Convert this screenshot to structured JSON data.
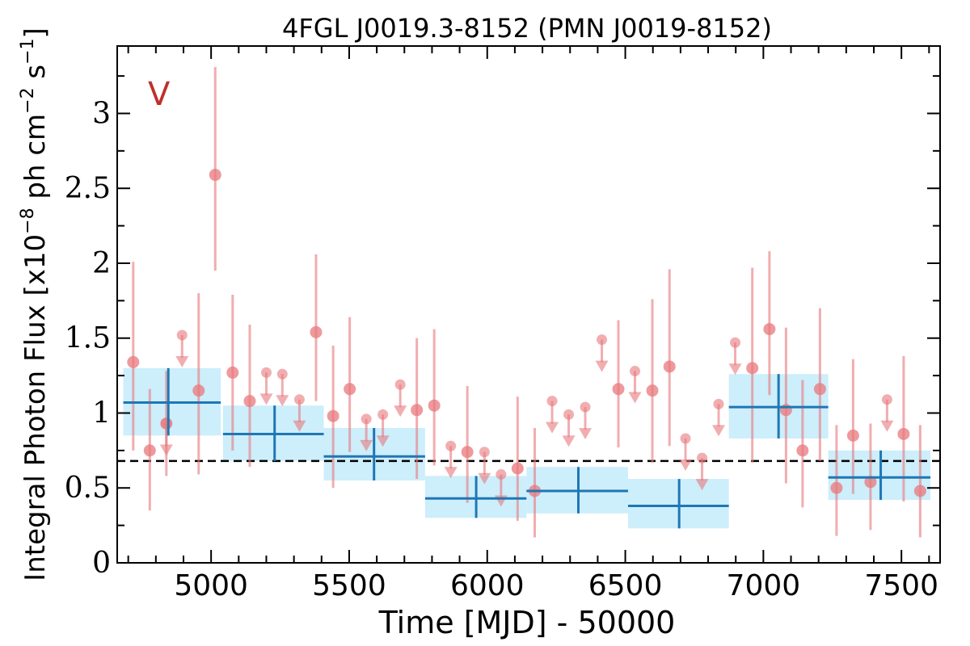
{
  "chart_data": {
    "type": "scatter",
    "title": "4FGL J0019.3-8152 (PMN J0019-8152)",
    "xlabel": "Time [MJD] - 50000",
    "ylabel_parts": {
      "pre": "Integral Photon Flux [x10",
      "exp1": "−8",
      "mid": " ph cm",
      "exp2": "−2",
      "mid2": " s",
      "exp3": "−1",
      "post": "]"
    },
    "annotation": "V",
    "xlim": [
      4660,
      7640
    ],
    "ylim": [
      0,
      3.45
    ],
    "xticks": [
      5000,
      5500,
      6000,
      6500,
      7000,
      7500
    ],
    "xtick_labels": [
      "5000",
      "5500",
      "6000",
      "6500",
      "7000",
      "7500"
    ],
    "yticks": [
      0,
      0.5,
      1,
      1.5,
      2,
      2.5,
      3
    ],
    "ytick_labels": [
      "0",
      "0.5",
      "1",
      "1.5",
      "2",
      "2.5",
      "3"
    ],
    "mean_flux": 0.68,
    "colors": {
      "points": "#e8787c",
      "bins": "#1f77b4",
      "bin_band": "#cdeefb",
      "annotation": "#c0302b",
      "mean_line": "#000000"
    },
    "detections": [
      {
        "x": 4718,
        "y": 1.34,
        "lo": 0.75,
        "hi": 2.01
      },
      {
        "x": 4778,
        "y": 0.75,
        "lo": 0.35,
        "hi": 1.16
      },
      {
        "x": 4838,
        "y": 0.93,
        "lo": 0.58,
        "hi": 1.28
      },
      {
        "x": 4955,
        "y": 1.15,
        "lo": 0.59,
        "hi": 1.8
      },
      {
        "x": 5015,
        "y": 2.59,
        "lo": 1.95,
        "hi": 3.31
      },
      {
        "x": 5078,
        "y": 1.27,
        "lo": 0.75,
        "hi": 1.79
      },
      {
        "x": 5140,
        "y": 1.08,
        "lo": 0.64,
        "hi": 1.59
      },
      {
        "x": 5380,
        "y": 1.54,
        "lo": 1.08,
        "hi": 2.06
      },
      {
        "x": 5442,
        "y": 0.98,
        "lo": 0.5,
        "hi": 1.45
      },
      {
        "x": 5502,
        "y": 1.16,
        "lo": 0.74,
        "hi": 1.64
      },
      {
        "x": 5745,
        "y": 1.02,
        "lo": 0.56,
        "hi": 1.5
      },
      {
        "x": 5808,
        "y": 1.05,
        "lo": 0.65,
        "hi": 1.56
      },
      {
        "x": 5928,
        "y": 0.74,
        "lo": 0.4,
        "hi": 1.18
      },
      {
        "x": 6110,
        "y": 0.63,
        "lo": 0.28,
        "hi": 1.11
      },
      {
        "x": 6172,
        "y": 0.48,
        "lo": 0.17,
        "hi": 0.9
      },
      {
        "x": 6475,
        "y": 1.16,
        "lo": 0.77,
        "hi": 1.62
      },
      {
        "x": 6598,
        "y": 1.15,
        "lo": 0.67,
        "hi": 1.76
      },
      {
        "x": 6660,
        "y": 1.31,
        "lo": 0.78,
        "hi": 1.96
      },
      {
        "x": 6960,
        "y": 1.3,
        "lo": 0.67,
        "hi": 1.97
      },
      {
        "x": 7022,
        "y": 1.56,
        "lo": 1.12,
        "hi": 2.08
      },
      {
        "x": 7082,
        "y": 1.02,
        "lo": 0.53,
        "hi": 1.57
      },
      {
        "x": 7142,
        "y": 0.75,
        "lo": 0.37,
        "hi": 1.22
      },
      {
        "x": 7205,
        "y": 1.16,
        "lo": 0.68,
        "hi": 1.7
      },
      {
        "x": 7265,
        "y": 0.5,
        "lo": 0.18,
        "hi": 0.92
      },
      {
        "x": 7325,
        "y": 0.85,
        "lo": 0.46,
        "hi": 1.36
      },
      {
        "x": 7388,
        "y": 0.54,
        "lo": 0.22,
        "hi": 0.93
      },
      {
        "x": 7508,
        "y": 0.86,
        "lo": 0.41,
        "hi": 1.38
      },
      {
        "x": 7568,
        "y": 0.48,
        "lo": 0.17,
        "hi": 0.92
      }
    ],
    "upper_limits": [
      {
        "x": 4838,
        "y": 0.93
      },
      {
        "x": 4895,
        "y": 1.52
      },
      {
        "x": 5200,
        "y": 1.27
      },
      {
        "x": 5258,
        "y": 1.26
      },
      {
        "x": 5320,
        "y": 1.09
      },
      {
        "x": 5562,
        "y": 0.96
      },
      {
        "x": 5622,
        "y": 0.99
      },
      {
        "x": 5685,
        "y": 1.19
      },
      {
        "x": 5868,
        "y": 0.78
      },
      {
        "x": 5990,
        "y": 0.74
      },
      {
        "x": 6050,
        "y": 0.59
      },
      {
        "x": 6235,
        "y": 1.08
      },
      {
        "x": 6295,
        "y": 0.99
      },
      {
        "x": 6355,
        "y": 1.04
      },
      {
        "x": 6415,
        "y": 1.49
      },
      {
        "x": 6535,
        "y": 1.28
      },
      {
        "x": 6718,
        "y": 0.83
      },
      {
        "x": 6778,
        "y": 0.7
      },
      {
        "x": 6838,
        "y": 1.06
      },
      {
        "x": 6898,
        "y": 1.47
      },
      {
        "x": 7448,
        "y": 1.09
      }
    ],
    "bins": [
      {
        "x": 4845,
        "xlo": 4682,
        "xhi": 5035,
        "y": 1.07,
        "ylo": 0.85,
        "yhi": 1.3
      },
      {
        "x": 5230,
        "xlo": 5043,
        "xhi": 5408,
        "y": 0.86,
        "ylo": 0.68,
        "yhi": 1.05
      },
      {
        "x": 5590,
        "xlo": 5408,
        "xhi": 5775,
        "y": 0.71,
        "ylo": 0.55,
        "yhi": 0.9
      },
      {
        "x": 5960,
        "xlo": 5775,
        "xhi": 6142,
        "y": 0.43,
        "ylo": 0.3,
        "yhi": 0.58
      },
      {
        "x": 6330,
        "xlo": 6142,
        "xhi": 6510,
        "y": 0.48,
        "ylo": 0.33,
        "yhi": 0.64
      },
      {
        "x": 6695,
        "xlo": 6510,
        "xhi": 6875,
        "y": 0.38,
        "ylo": 0.23,
        "yhi": 0.56
      },
      {
        "x": 7055,
        "xlo": 6875,
        "xhi": 7235,
        "y": 1.04,
        "ylo": 0.83,
        "yhi": 1.26
      },
      {
        "x": 7425,
        "xlo": 7235,
        "xhi": 7605,
        "y": 0.57,
        "ylo": 0.42,
        "yhi": 0.75
      }
    ]
  }
}
